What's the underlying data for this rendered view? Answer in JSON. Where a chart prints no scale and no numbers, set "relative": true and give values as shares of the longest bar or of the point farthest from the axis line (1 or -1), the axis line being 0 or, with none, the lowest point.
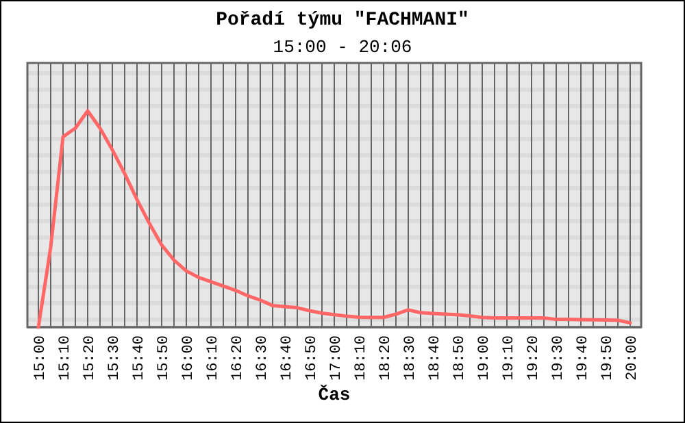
{
  "chart_data": {
    "type": "line",
    "title": "Pořadí týmu \"FACHMANI\"",
    "subtitle": "15:00 - 20:06",
    "xlabel": "Čas",
    "categories": [
      "15:00",
      null,
      "15:10",
      null,
      "15:20",
      null,
      "15:30",
      null,
      "15:40",
      null,
      "15:50",
      null,
      "16:00",
      null,
      "16:10",
      null,
      "16:20",
      null,
      "16:30",
      null,
      "16:40",
      null,
      "16:50",
      null,
      "17:00",
      null,
      "18:10",
      null,
      "18:20",
      null,
      "18:30",
      null,
      "18:40",
      null,
      "18:50",
      null,
      "19:00",
      null,
      "19:10",
      null,
      "19:20",
      null,
      "19:30",
      null,
      "19:40",
      null,
      "19:50",
      null,
      "20:00"
    ],
    "series": [
      {
        "color": "#ff6666",
        "values": [
          0,
          0.37,
          0.88,
          0.92,
          1,
          0.92,
          0.82,
          0.71,
          0.59,
          0.48,
          0.38,
          0.31,
          0.26,
          0.23,
          0.21,
          0.19,
          0.17,
          0.145,
          0.125,
          0.1,
          0.095,
          0.09,
          0.076,
          0.065,
          0.058,
          0.051,
          0.046,
          0.045,
          0.045,
          0.06,
          0.08,
          0.067,
          0.063,
          0.06,
          0.058,
          0.052,
          0.045,
          0.043,
          0.043,
          0.043,
          0.043,
          0.043,
          0.036,
          0.036,
          0.035,
          0.034,
          0.033,
          0.032,
          0.02
        ]
      }
    ],
    "relative": true,
    "grid": "x",
    "marker": "none",
    "line_style": "solid"
  }
}
